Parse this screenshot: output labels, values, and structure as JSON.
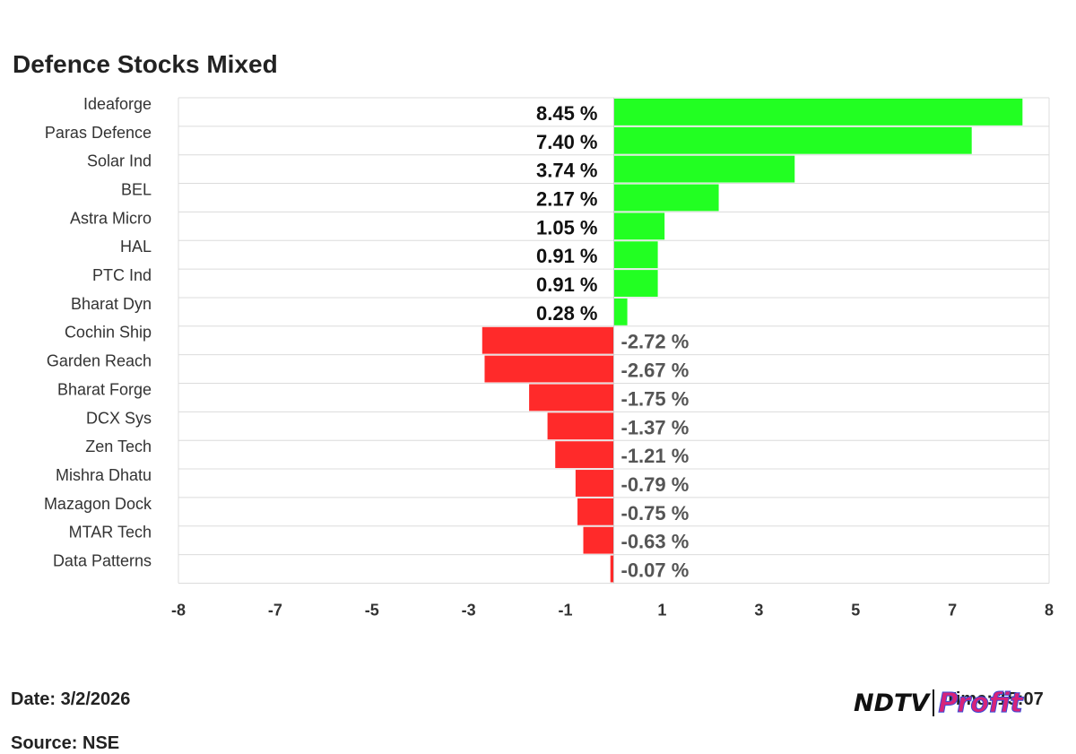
{
  "chart_data": {
    "type": "bar",
    "orientation": "horizontal",
    "title": "Defence Stocks Mixed",
    "categories": [
      "Ideaforge",
      "Paras Defence",
      "Solar Ind",
      "BEL",
      "Astra Micro",
      "HAL",
      "PTC Ind",
      "Bharat Dyn",
      "Cochin Ship",
      "Garden Reach",
      "Bharat Forge",
      "DCX Sys",
      "Zen Tech",
      "Mishra Dhatu",
      "Mazagon Dock",
      "MTAR Tech",
      "Data Patterns"
    ],
    "values": [
      8.45,
      7.4,
      3.74,
      2.17,
      1.05,
      0.91,
      0.91,
      0.28,
      -2.72,
      -2.67,
      -1.75,
      -1.37,
      -1.21,
      -0.79,
      -0.75,
      -0.63,
      -0.07
    ],
    "value_labels": [
      "8.45 %",
      "7.40 %",
      "3.74 %",
      "2.17 %",
      "1.05 %",
      "0.91 %",
      "0.91 %",
      "0.28 %",
      "-2.72 %",
      "-2.67 %",
      "-1.75 %",
      "-1.37 %",
      "-1.21 %",
      "-0.79 %",
      "-0.75 %",
      "-0.63 %",
      "-0.07 %"
    ],
    "xlim": [
      -9,
      9
    ],
    "x_ticks": [
      "-8",
      "-7",
      "-5",
      "-3",
      "-1",
      "1",
      "3",
      "5",
      "7",
      "8"
    ],
    "positive_color": "#22ff22",
    "negative_color": "#ff2a2a",
    "grid": true
  },
  "footer": {
    "date": "Date: 3/2/2026",
    "time": "Time: 15:07",
    "source": "Source: NSE"
  },
  "logo": {
    "ndtv": "NDTV",
    "profit": "Profit"
  }
}
